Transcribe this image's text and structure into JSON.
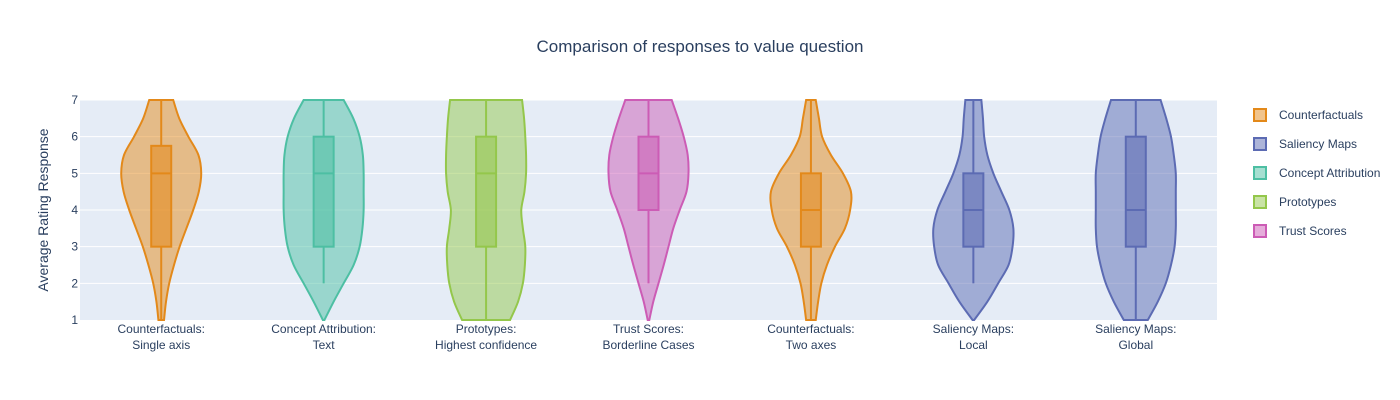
{
  "chart_data": {
    "type": "violin",
    "title": "Comparison of responses to value question",
    "xlabel": "",
    "ylabel": "Average Rating Response",
    "ylim": [
      1,
      7
    ],
    "yticks": [
      1,
      2,
      3,
      4,
      5,
      6,
      7
    ],
    "grid": true,
    "legend_position": "right",
    "plot_background": "#e5ecf6",
    "legend": [
      {
        "name": "Counterfactuals",
        "color": "#e3891a"
      },
      {
        "name": "Saliency Maps",
        "color": "#5c6bb3"
      },
      {
        "name": "Concept Attribution",
        "color": "#4dbfa3"
      },
      {
        "name": "Prototypes",
        "color": "#94c74b"
      },
      {
        "name": "Trust Scores",
        "color": "#cc5cb5"
      }
    ],
    "violins": [
      {
        "category": [
          "Counterfactuals:",
          "Single axis"
        ],
        "series": "Counterfactuals",
        "q1": 3,
        "median": 5,
        "q3": 5.75,
        "whisker_low": 1,
        "whisker_high": 7,
        "density": [
          [
            1,
            0.07
          ],
          [
            1.5,
            0.12
          ],
          [
            2,
            0.2
          ],
          [
            2.5,
            0.32
          ],
          [
            3,
            0.46
          ],
          [
            3.5,
            0.63
          ],
          [
            4,
            0.8
          ],
          [
            4.5,
            0.94
          ],
          [
            5,
            1.0
          ],
          [
            5.5,
            0.93
          ],
          [
            6,
            0.68
          ],
          [
            6.5,
            0.45
          ],
          [
            7,
            0.3
          ]
        ]
      },
      {
        "category": [
          "Concept Attribution:",
          "Text"
        ],
        "series": "Concept Attribution",
        "q1": 3,
        "median": 5,
        "q3": 6,
        "whisker_low": 2,
        "whisker_high": 7,
        "density": [
          [
            1,
            0.02
          ],
          [
            1.5,
            0.25
          ],
          [
            2,
            0.5
          ],
          [
            2.5,
            0.75
          ],
          [
            3,
            0.9
          ],
          [
            3.5,
            0.97
          ],
          [
            4,
            1.0
          ],
          [
            4.5,
            1.0
          ],
          [
            5,
            1.0
          ],
          [
            5.5,
            0.98
          ],
          [
            6,
            0.9
          ],
          [
            6.5,
            0.74
          ],
          [
            7,
            0.5
          ]
        ]
      },
      {
        "category": [
          "Prototypes:",
          "Highest confidence"
        ],
        "series": "Prototypes",
        "q1": 3,
        "median": 5,
        "q3": 6,
        "whisker_low": 1,
        "whisker_high": 7,
        "density": [
          [
            1,
            0.6
          ],
          [
            1.5,
            0.8
          ],
          [
            2,
            0.92
          ],
          [
            2.5,
            0.97
          ],
          [
            3,
            0.98
          ],
          [
            3.5,
            0.92
          ],
          [
            4,
            0.88
          ],
          [
            4.5,
            0.96
          ],
          [
            5,
            1.0
          ],
          [
            5.5,
            1.0
          ],
          [
            6,
            0.98
          ],
          [
            6.5,
            0.95
          ],
          [
            7,
            0.9
          ]
        ]
      },
      {
        "category": [
          "Trust Scores:",
          "Borderline Cases"
        ],
        "series": "Trust Scores",
        "q1": 4,
        "median": 5,
        "q3": 6,
        "whisker_low": 2,
        "whisker_high": 7,
        "density": [
          [
            1,
            0.02
          ],
          [
            1.5,
            0.12
          ],
          [
            2,
            0.25
          ],
          [
            2.5,
            0.38
          ],
          [
            3,
            0.5
          ],
          [
            3.5,
            0.62
          ],
          [
            4,
            0.78
          ],
          [
            4.5,
            0.95
          ],
          [
            5,
            1.0
          ],
          [
            5.5,
            0.98
          ],
          [
            6,
            0.88
          ],
          [
            6.5,
            0.74
          ],
          [
            7,
            0.58
          ]
        ]
      },
      {
        "category": [
          "Counterfactuals:",
          "Two axes"
        ],
        "series": "Counterfactuals",
        "q1": 3,
        "median": 4,
        "q3": 5,
        "whisker_low": 1,
        "whisker_high": 7,
        "density": [
          [
            1,
            0.12
          ],
          [
            1.5,
            0.18
          ],
          [
            2,
            0.26
          ],
          [
            2.5,
            0.4
          ],
          [
            3,
            0.6
          ],
          [
            3.5,
            0.85
          ],
          [
            4,
            0.98
          ],
          [
            4.5,
            1.0
          ],
          [
            5,
            0.8
          ],
          [
            5.5,
            0.5
          ],
          [
            6,
            0.28
          ],
          [
            6.5,
            0.2
          ],
          [
            7,
            0.12
          ]
        ]
      },
      {
        "category": [
          "Saliency Maps:",
          "Local"
        ],
        "series": "Saliency Maps",
        "q1": 3,
        "median": 4,
        "q3": 5,
        "whisker_low": 2,
        "whisker_high": 7,
        "density": [
          [
            1,
            0.02
          ],
          [
            1.5,
            0.35
          ],
          [
            2,
            0.62
          ],
          [
            2.5,
            0.88
          ],
          [
            3,
            0.98
          ],
          [
            3.5,
            1.0
          ],
          [
            4,
            0.9
          ],
          [
            4.5,
            0.7
          ],
          [
            5,
            0.5
          ],
          [
            5.5,
            0.35
          ],
          [
            6,
            0.27
          ],
          [
            6.5,
            0.24
          ],
          [
            7,
            0.2
          ]
        ]
      },
      {
        "category": [
          "Saliency Maps:",
          "Global"
        ],
        "series": "Saliency Maps",
        "q1": 3,
        "median": 4,
        "q3": 6,
        "whisker_low": 1,
        "whisker_high": 7,
        "density": [
          [
            1,
            0.3
          ],
          [
            1.5,
            0.55
          ],
          [
            2,
            0.75
          ],
          [
            2.5,
            0.88
          ],
          [
            3,
            0.97
          ],
          [
            3.5,
            1.0
          ],
          [
            4,
            1.0
          ],
          [
            4.5,
            1.0
          ],
          [
            5,
            1.0
          ],
          [
            5.5,
            0.95
          ],
          [
            6,
            0.88
          ],
          [
            6.5,
            0.76
          ],
          [
            7,
            0.62
          ]
        ]
      }
    ]
  }
}
